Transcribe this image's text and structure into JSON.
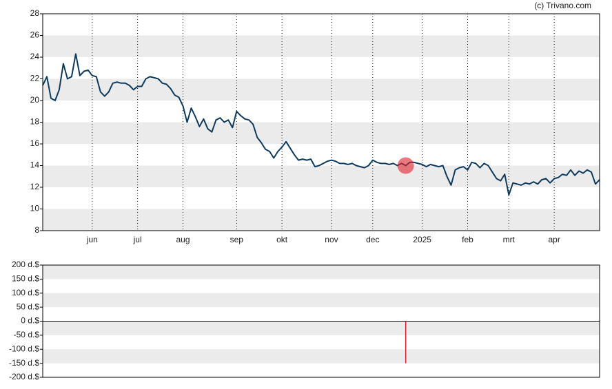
{
  "chart_data": [
    {
      "type": "line",
      "source": "(c) Trivano.com",
      "categories": [
        null,
        null,
        null,
        null,
        null,
        null,
        null,
        null,
        null,
        null,
        null,
        null,
        "jun",
        null,
        null,
        null,
        null,
        null,
        null,
        null,
        null,
        null,
        null,
        "jul",
        null,
        null,
        null,
        null,
        null,
        null,
        null,
        null,
        null,
        null,
        "aug",
        null,
        null,
        null,
        null,
        null,
        null,
        null,
        null,
        null,
        null,
        null,
        null,
        "sep",
        null,
        null,
        null,
        null,
        null,
        null,
        null,
        null,
        null,
        null,
        "okt",
        null,
        null,
        null,
        null,
        null,
        null,
        null,
        null,
        null,
        null,
        null,
        "nov",
        null,
        null,
        null,
        null,
        null,
        null,
        null,
        null,
        null,
        "dec",
        null,
        null,
        null,
        null,
        null,
        null,
        null,
        null,
        null,
        null,
        null,
        "2025",
        null,
        null,
        null,
        null,
        null,
        null,
        null,
        null,
        null,
        null,
        "feb",
        null,
        null,
        null,
        null,
        null,
        null,
        null,
        null,
        null,
        "mrt",
        null,
        null,
        null,
        null,
        null,
        null,
        null,
        null,
        null,
        null,
        "apr",
        null,
        null,
        null,
        null,
        null,
        null,
        null,
        null,
        null,
        null,
        null
      ],
      "series": [
        {
          "color": "#0d3a5c",
          "values": [
            21.4,
            22.2,
            20.2,
            20.0,
            21.0,
            23.4,
            22.0,
            22.2,
            24.3,
            22.3,
            22.7,
            22.8,
            22.3,
            22.2,
            20.8,
            20.4,
            20.8,
            21.6,
            21.7,
            21.6,
            21.6,
            21.4,
            21.0,
            21.3,
            21.3,
            22.0,
            22.2,
            22.1,
            22.0,
            21.6,
            21.5,
            21.1,
            20.5,
            20.3,
            19.5,
            18.0,
            19.3,
            18.5,
            17.6,
            18.3,
            17.4,
            17.1,
            18.2,
            18.4,
            18.0,
            18.2,
            17.5,
            19.0,
            18.6,
            18.3,
            18.2,
            17.8,
            16.6,
            16.1,
            15.5,
            15.3,
            14.7,
            15.3,
            15.7,
            16.2,
            15.6,
            15.0,
            14.5,
            14.6,
            14.5,
            14.6,
            13.9,
            14.0,
            14.2,
            14.4,
            14.5,
            14.4,
            14.2,
            14.2,
            14.1,
            14.2,
            14.0,
            13.9,
            13.8,
            14.0,
            14.5,
            14.3,
            14.2,
            14.2,
            14.1,
            14.2,
            14.0,
            14.2,
            14.0,
            14.3,
            14.3,
            14.2,
            14.1,
            13.9,
            14.1,
            14.0,
            13.9,
            14.0,
            13.0,
            12.2,
            13.6,
            13.8,
            13.9,
            13.6,
            14.3,
            14.2,
            13.8,
            14.2,
            14.0,
            13.4,
            12.8,
            12.6,
            13.2,
            11.3,
            12.4,
            12.3,
            12.2,
            12.4,
            12.3,
            12.5,
            12.3,
            12.7,
            12.8,
            12.4,
            12.8,
            12.9,
            13.2,
            13.1,
            13.6,
            13.1,
            13.5,
            13.3,
            13.6,
            13.4,
            12.3,
            12.7
          ]
        }
      ],
      "ylim": [
        8,
        28
      ],
      "yticks": [
        8,
        10,
        12,
        14,
        16,
        18,
        20,
        22,
        24,
        26,
        28
      ],
      "grid": true
    },
    {
      "type": "bar",
      "x": [
        88
      ],
      "values": [
        -150
      ],
      "color": "#e0202a",
      "xlim": [
        0,
        135
      ],
      "ylim": [
        -200,
        200
      ],
      "yticks": [
        {
          "value": -200,
          "label": "-200 d.$"
        },
        {
          "value": -150,
          "label": "-150 d.$"
        },
        {
          "value": -100,
          "label": "-100 d.$"
        },
        {
          "value": -50,
          "label": "-50 d.$"
        },
        {
          "value": 0,
          "label": "0 d.$"
        },
        {
          "value": 50,
          "label": "50 d.$"
        },
        {
          "value": 100,
          "label": "100 d.$"
        },
        {
          "value": 150,
          "label": "150 d.$"
        },
        {
          "value": 200,
          "label": "200 d.$"
        }
      ],
      "grid": true
    }
  ]
}
